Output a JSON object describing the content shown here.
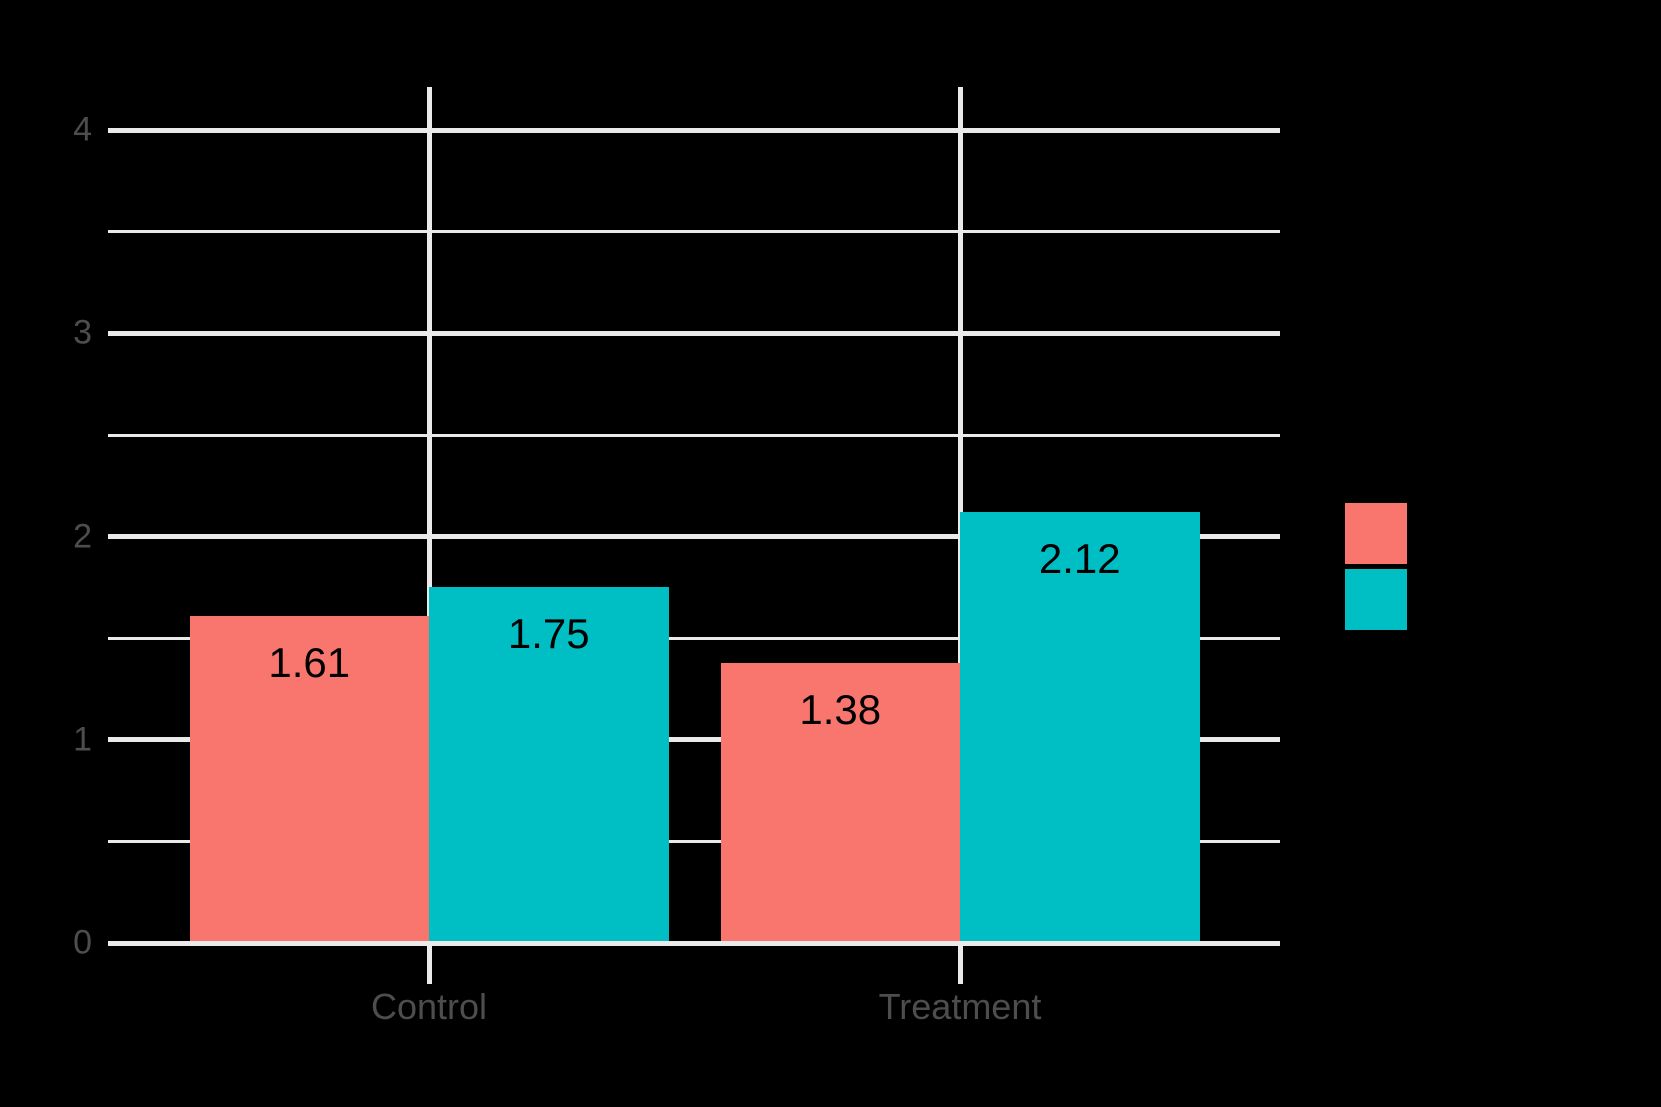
{
  "chart_data": {
    "type": "bar",
    "title": "",
    "xlabel": "",
    "ylabel": "",
    "categories": [
      "Control",
      "Treatment"
    ],
    "series": [
      {
        "name": "series-1",
        "color": "#F8766D",
        "values": [
          1.61,
          1.38
        ],
        "labels": [
          "1.61",
          "1.38"
        ]
      },
      {
        "name": "series-2",
        "color": "#00BFC4",
        "values": [
          1.75,
          2.12
        ],
        "labels": [
          "1.75",
          "2.12"
        ]
      }
    ],
    "ylim": [
      0,
      4
    ],
    "y_major_ticks": [
      0,
      1,
      2,
      3,
      4
    ],
    "y_minor_ticks": [
      0.5,
      1.5,
      2.5,
      3.5
    ],
    "y_tick_labels": [
      "0",
      "1",
      "2",
      "3",
      "4"
    ],
    "x_tick_labels": [
      "Control",
      "Treatment"
    ],
    "grid": "major-and-minor",
    "legend_position": "right",
    "legend_labels_visible": false
  },
  "legend": {
    "swatches": [
      {
        "name": "series-1",
        "color": "#F8766D"
      },
      {
        "name": "series-2",
        "color": "#00BFC4"
      }
    ]
  },
  "colors": {
    "background": "#000000",
    "gridline": "#EAEAEA",
    "axis_text": "#4D4D4D",
    "value_label": "#000000"
  }
}
